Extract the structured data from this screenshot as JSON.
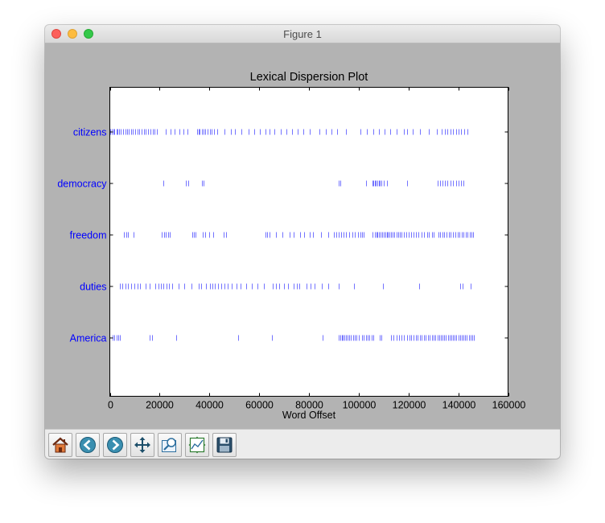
{
  "window": {
    "title": "Figure 1"
  },
  "toolbar": {
    "buttons": [
      {
        "name": "home-button",
        "icon": "home-icon"
      },
      {
        "name": "back-button",
        "icon": "back-arrow-icon"
      },
      {
        "name": "forward-button",
        "icon": "forward-arrow-icon"
      },
      {
        "name": "pan-button",
        "icon": "pan-move-icon"
      },
      {
        "name": "zoom-button",
        "icon": "zoom-rect-icon"
      },
      {
        "name": "configure-subplots-button",
        "icon": "subplots-icon"
      },
      {
        "name": "save-button",
        "icon": "save-disk-icon"
      }
    ]
  },
  "chart_data": {
    "type": "scatter",
    "title": "Lexical Dispersion Plot",
    "xlabel": "Word Offset",
    "ylabel": "",
    "xlim": [
      0,
      160000
    ],
    "xticks": [
      0,
      20000,
      40000,
      60000,
      80000,
      100000,
      120000,
      140000,
      160000
    ],
    "grid": false,
    "marker": "|",
    "color": "#0000ff",
    "categories": [
      "citizens",
      "democracy",
      "freedom",
      "duties",
      "America"
    ],
    "series": [
      {
        "name": "citizens",
        "x": [
          200,
          700,
          1300,
          1900,
          2600,
          3200,
          3800,
          4500,
          5300,
          6200,
          7000,
          7700,
          8500,
          9300,
          10100,
          11000,
          11800,
          12700,
          13600,
          14500,
          15400,
          16300,
          17200,
          18100,
          19000,
          22500,
          24300,
          26000,
          27800,
          29600,
          31300,
          35000,
          35600,
          36200,
          36900,
          37600,
          38400,
          39200,
          40100,
          41000,
          41900,
          43200,
          46000,
          48500,
          50200,
          52800,
          55700,
          58100,
          60200,
          62400,
          64100,
          66200,
          68700,
          71000,
          73200,
          75500,
          77800,
          80300,
          84300,
          86800,
          89000,
          91300,
          94800,
          100600,
          103300,
          105900,
          108000,
          110500,
          112800,
          115200,
          118000,
          119500,
          121700,
          124700,
          128300,
          131400,
          133200,
          134500,
          135700,
          136800,
          137900,
          139000,
          140100,
          141200,
          142400,
          143600
        ]
      },
      {
        "name": "democracy",
        "x": [
          21500,
          30500,
          31600,
          37100,
          37600,
          92000,
          92600,
          102800,
          105400,
          105900,
          106400,
          106900,
          107400,
          108000,
          108500,
          109200,
          110200,
          111300,
          119400,
          131800,
          132600,
          133600,
          134600,
          135700,
          136800,
          137900,
          139000,
          140000,
          141000,
          142000
        ]
      },
      {
        "name": "freedom",
        "x": [
          5800,
          6600,
          7400,
          9400,
          20700,
          21700,
          22400,
          23400,
          24200,
          33000,
          33800,
          34400,
          37300,
          38300,
          40000,
          41600,
          45700,
          46800,
          62400,
          63200,
          64100,
          66700,
          69400,
          72400,
          74000,
          76300,
          78000,
          80300,
          81700,
          85000,
          87800,
          89900,
          91000,
          92000,
          93000,
          94000,
          95000,
          96200,
          97300,
          98400,
          99600,
          100600,
          101300,
          102000,
          105500,
          106500,
          107100,
          107600,
          108200,
          108800,
          109400,
          110000,
          110600,
          111200,
          111800,
          112400,
          113000,
          113700,
          114400,
          115100,
          115800,
          116500,
          117200,
          118100,
          119000,
          120000,
          121000,
          122000,
          123000,
          124100,
          125200,
          126300,
          127400,
          128300,
          129300,
          130200,
          132100,
          132800,
          133600,
          134400,
          135200,
          136100,
          137000,
          137900,
          138800,
          139700,
          140500,
          141300,
          142100,
          142900,
          143700,
          144500,
          145200,
          146000
        ]
      },
      {
        "name": "duties",
        "x": [
          4000,
          5100,
          6200,
          7400,
          8700,
          10000,
          11100,
          12200,
          14400,
          16000,
          18400,
          19400,
          20500,
          21400,
          22700,
          23900,
          25200,
          27600,
          29800,
          32900,
          35600,
          36800,
          38600,
          40200,
          41300,
          42300,
          43500,
          44800,
          46000,
          47400,
          48900,
          51000,
          52500,
          54800,
          57200,
          59200,
          62000,
          65300,
          66800,
          68200,
          70000,
          71700,
          73800,
          75000,
          76200,
          79100,
          80500,
          82400,
          85100,
          87700,
          92100,
          98100,
          109600,
          124200,
          140800,
          141600,
          145100
        ]
      },
      {
        "name": "America",
        "x": [
          1000,
          1800,
          2600,
          3300,
          4000,
          16000,
          17000,
          26600,
          51500,
          65000,
          85600,
          91800,
          92500,
          93100,
          93700,
          94300,
          94900,
          95500,
          96200,
          96900,
          97700,
          98400,
          99200,
          100000,
          101300,
          102000,
          102800,
          103600,
          104400,
          105100,
          106000,
          108300,
          109000,
          113000,
          114000,
          115200,
          116200,
          117200,
          118200,
          119300,
          120300,
          121200,
          122100,
          122900,
          123700,
          124500,
          125300,
          126100,
          126900,
          127700,
          128500,
          129300,
          130100,
          130900,
          131600,
          132300,
          133000,
          133700,
          134400,
          135100,
          135800,
          136500,
          137200,
          137900,
          138600,
          139300,
          140000,
          140700,
          141400,
          142100,
          142800,
          143500,
          144200,
          144900,
          145600,
          146300
        ]
      }
    ]
  }
}
